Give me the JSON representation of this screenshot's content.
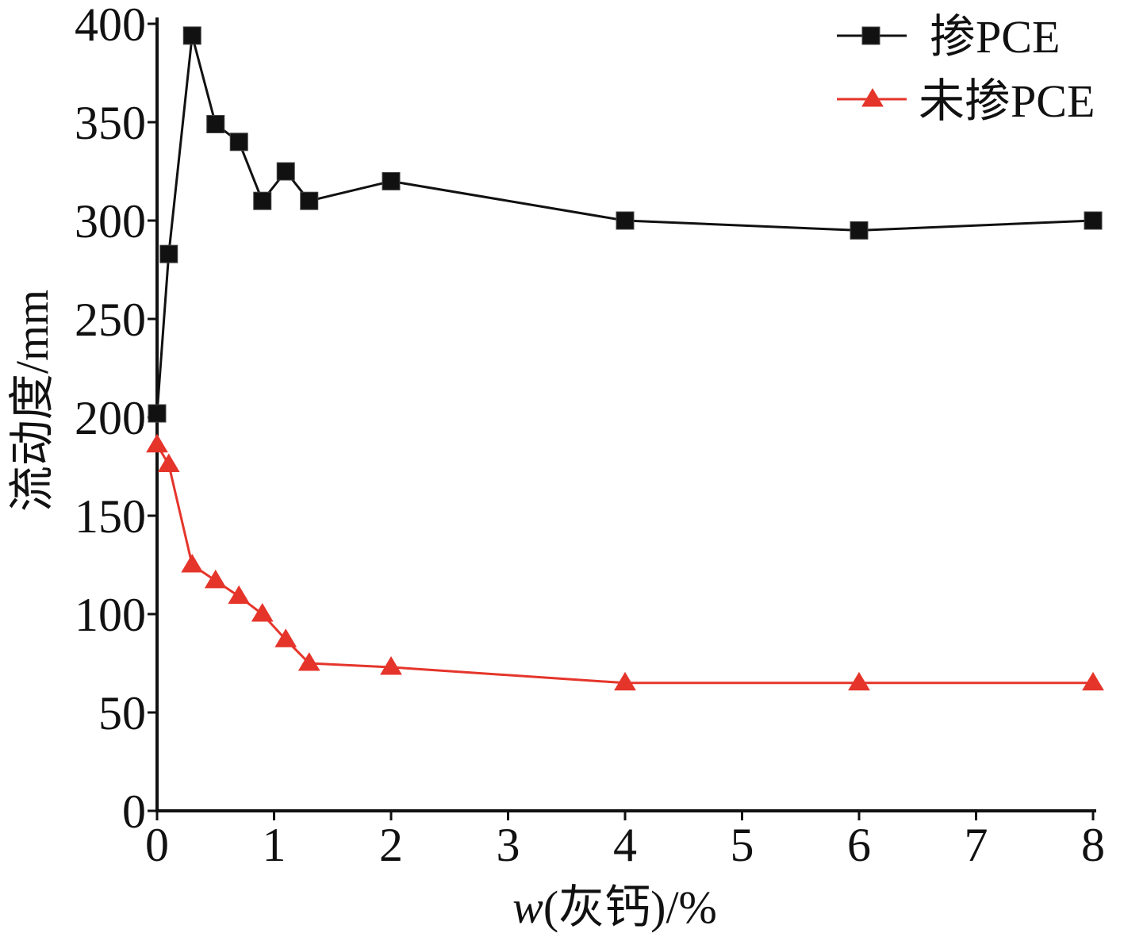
{
  "chart_data": {
    "type": "line",
    "xlabel": "w(灰钙)/%",
    "ylabel": "流动度/mm",
    "xlim": [
      0,
      8
    ],
    "ylim": [
      0,
      400
    ],
    "xticks": [
      0,
      1,
      2,
      3,
      4,
      5,
      6,
      7,
      8
    ],
    "yticks": [
      0,
      50,
      100,
      150,
      200,
      250,
      300,
      350,
      400
    ],
    "grid": false,
    "legend": "top-right",
    "x": [
      0,
      0.1,
      0.3,
      0.5,
      0.7,
      0.9,
      1.1,
      1.3,
      2,
      4,
      6,
      8
    ],
    "series": [
      {
        "name": "掺PCE",
        "color": "#111111",
        "marker": "square",
        "y": [
          202,
          283,
          394,
          349,
          340,
          310,
          325,
          310,
          320,
          300,
          295,
          300
        ]
      },
      {
        "name": "未掺PCE",
        "color": "#e5352b",
        "marker": "triangle",
        "y": [
          186,
          176,
          125,
          117,
          109,
          100,
          87,
          75,
          73,
          65,
          65,
          65
        ]
      }
    ]
  },
  "colors": {
    "axis": "#111111",
    "background": "#ffffff"
  }
}
